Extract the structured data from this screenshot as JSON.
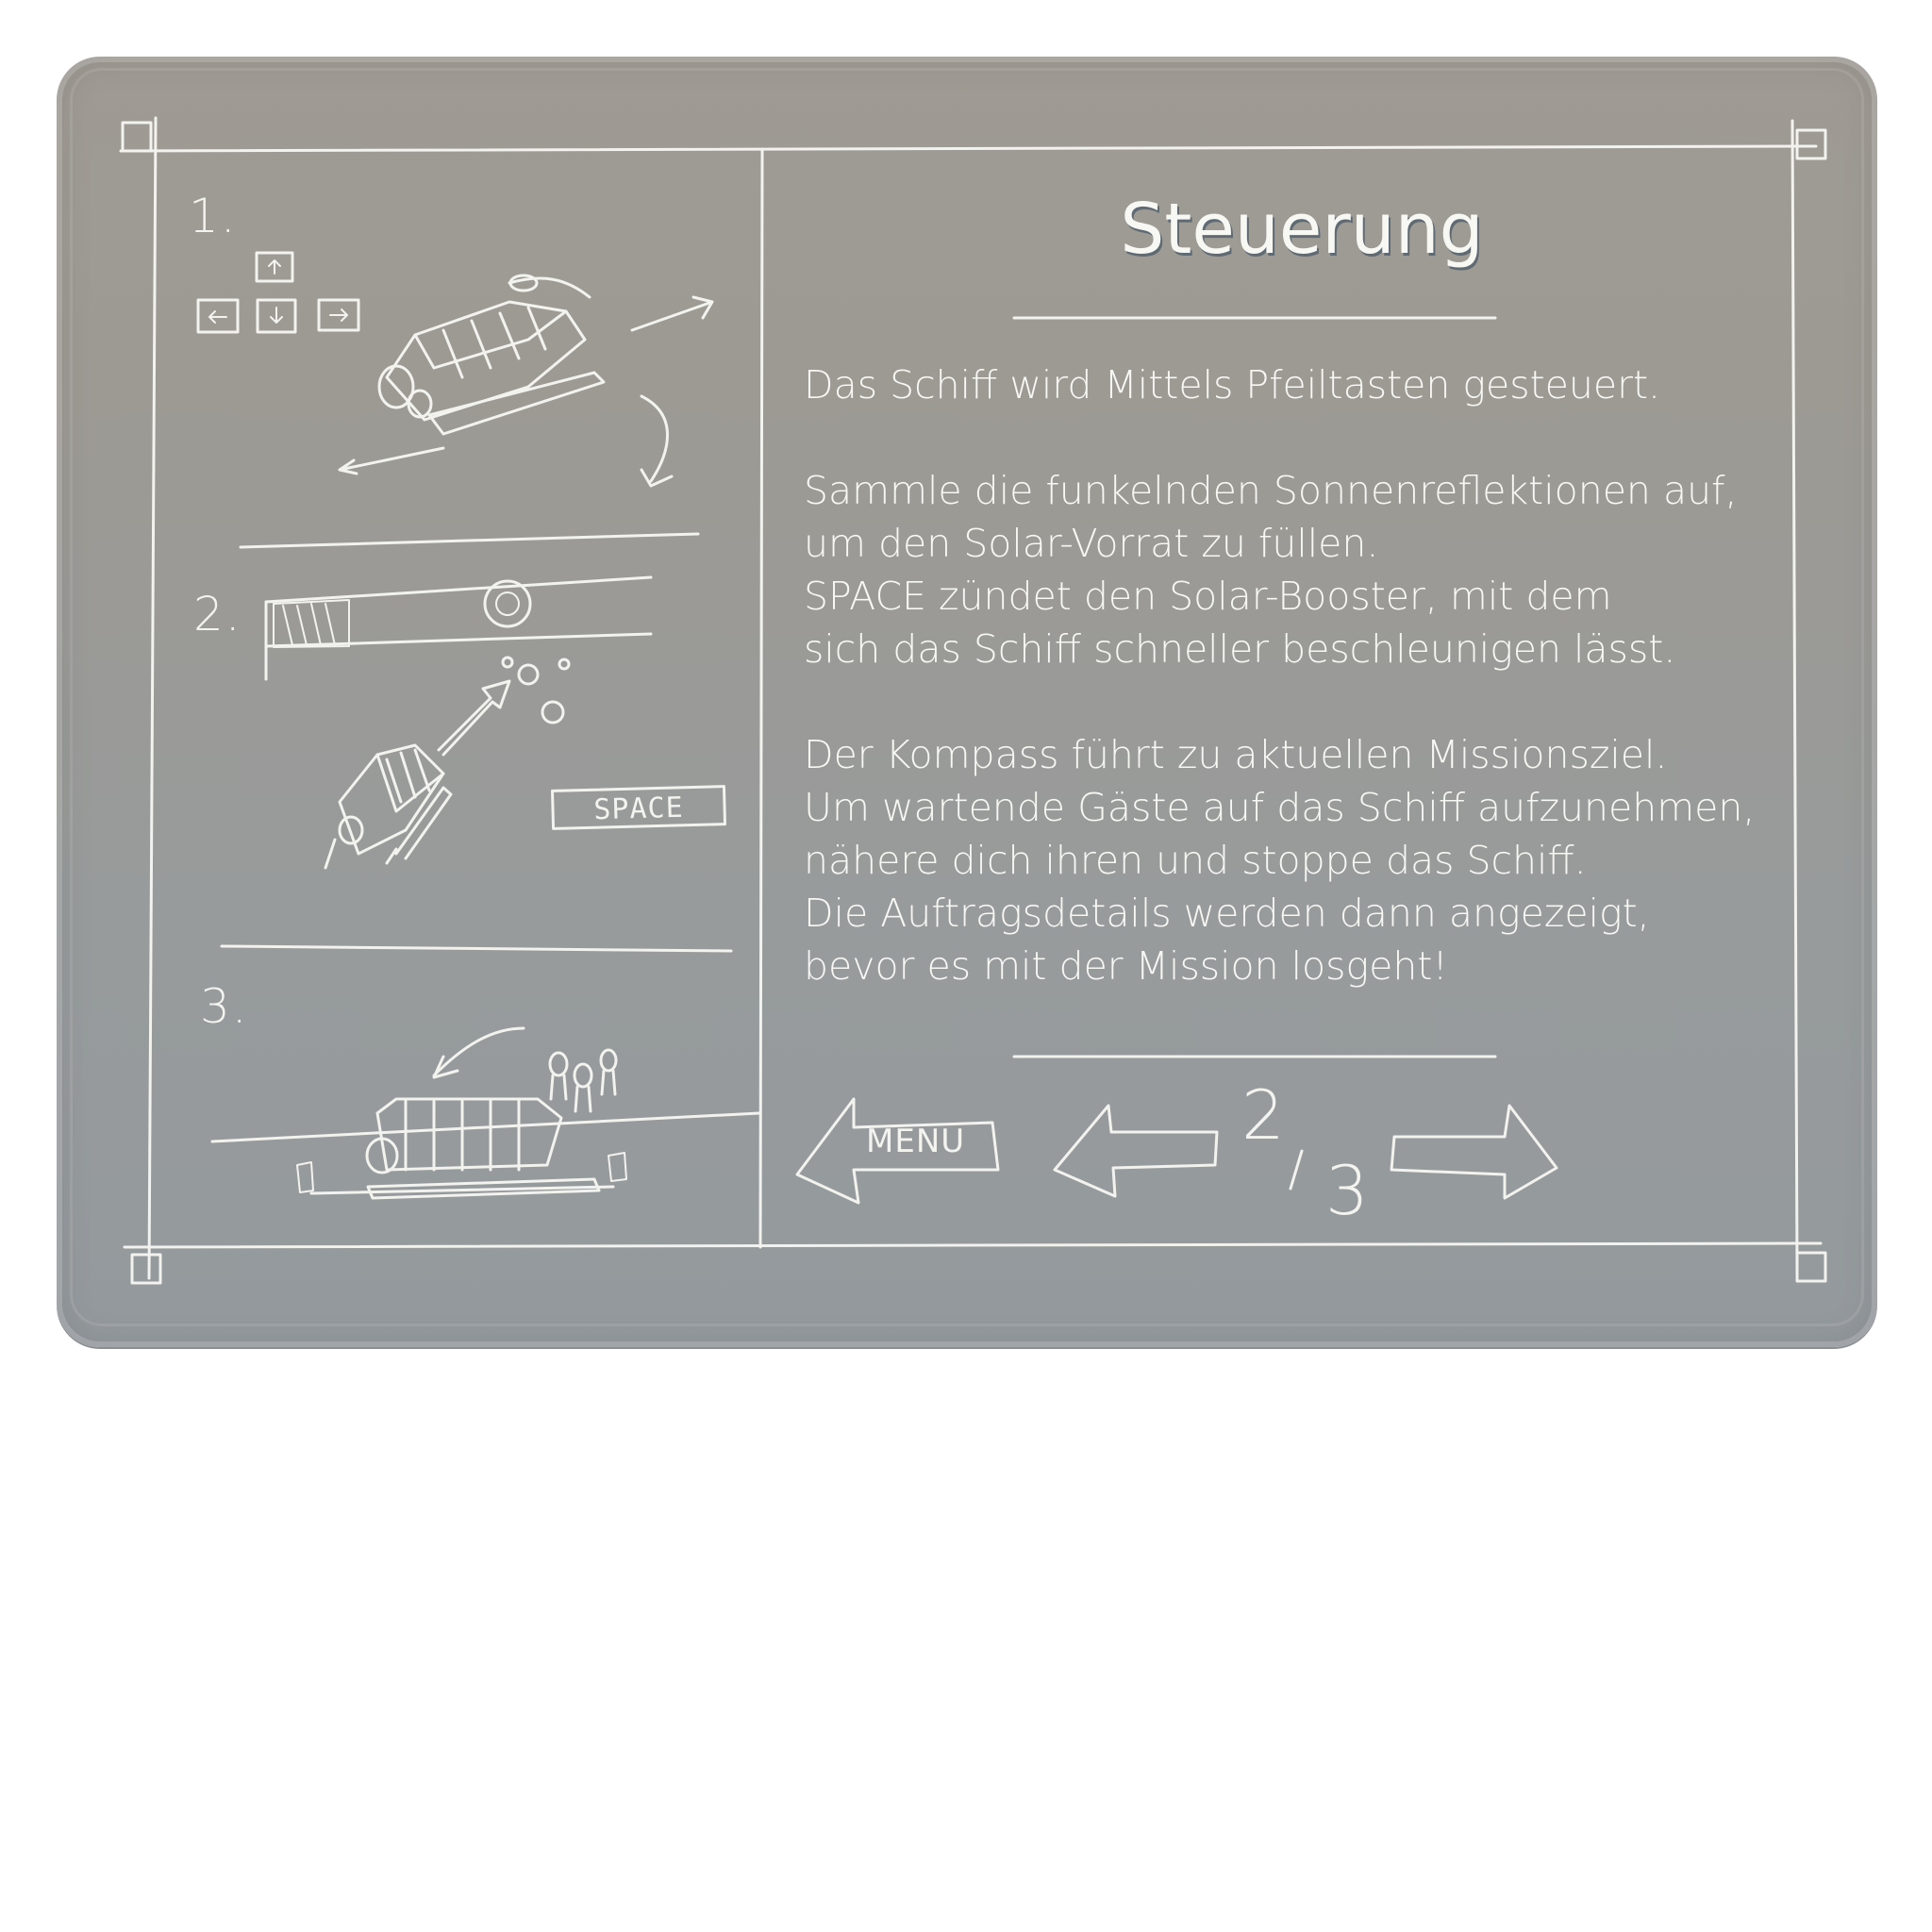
{
  "title": "Steuerung",
  "steps": [
    "1.",
    "2.",
    "3."
  ],
  "space_key_label": "SPACE",
  "paragraphs": [
    [
      "Das Schiff wird Mittels Pfeiltasten gesteuert."
    ],
    [
      "Sammle die funkelnden Sonnenreflektionen auf,",
      "um den Solar-Vorrat zu füllen.",
      "SPACE zündet den Solar-Booster, mit dem",
      "sich das Schiff schneller beschleunigen lässt."
    ],
    [
      "Der Kompass führt zu aktuellen Missionsziel.",
      "Um wartende Gäste auf das Schiff aufzunehmen,",
      "nähere dich ihren und stoppe das Schiff.",
      "Die Auftragsdetails werden dann angezeigt,",
      "bevor es mit der Mission losgeht!"
    ]
  ],
  "nav": {
    "menu_label": "MENU",
    "page_current": "2",
    "page_total": "3"
  },
  "colors": {
    "board_top": "#9f9a93",
    "board_bottom": "#94999d",
    "chalk": "#f2f2ee",
    "sparkle": "#e8dc8c"
  }
}
